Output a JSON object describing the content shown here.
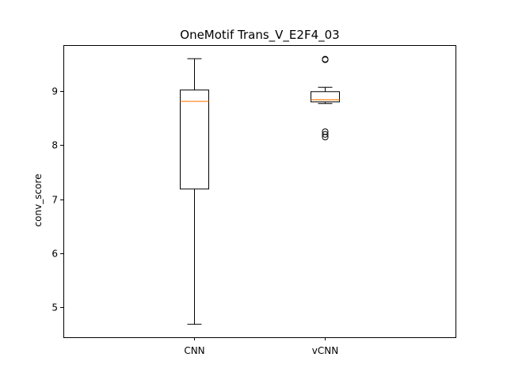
{
  "chart_data": {
    "type": "box",
    "title": "OneMotif Trans_V_E2F4_03",
    "xlabel": "",
    "ylabel": "conv_score",
    "categories": [
      "CNN",
      "vCNN"
    ],
    "ylim": [
      4.45,
      9.85
    ],
    "yticks": [
      5,
      6,
      7,
      8,
      9
    ],
    "grid": false,
    "colors": {
      "median": "#ff7f0e",
      "box": "#000000",
      "frame": "#000000"
    },
    "boxes": [
      {
        "label": "CNN",
        "whisker_low": 4.69,
        "q1": 7.19,
        "median": 8.81,
        "q3": 9.02,
        "whisker_high": 9.6,
        "fliers": []
      },
      {
        "label": "vCNN",
        "whisker_low": 8.77,
        "q1": 8.8,
        "median": 8.84,
        "q3": 8.99,
        "whisker_high": 9.07,
        "fliers": [
          9.58,
          9.59,
          8.15,
          8.2,
          8.25
        ]
      }
    ]
  }
}
